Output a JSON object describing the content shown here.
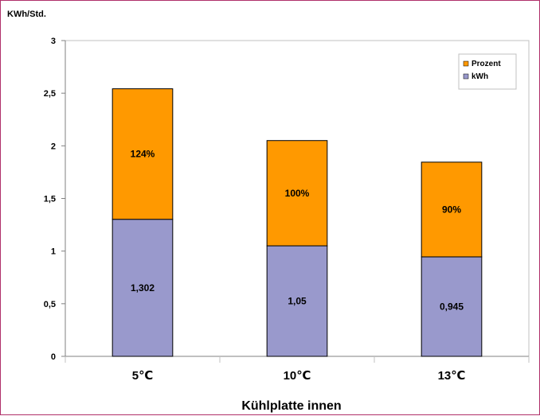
{
  "chart_data": {
    "type": "bar",
    "stacked": true,
    "categories": [
      "5℃",
      "10℃",
      "13℃"
    ],
    "series": [
      {
        "name": "kWh",
        "values": [
          1.302,
          1.05,
          0.945
        ],
        "labels": [
          "1,302",
          "1,05",
          "0,945"
        ],
        "color": "#9999cc"
      },
      {
        "name": "Prozent",
        "values": [
          1.24,
          1.0,
          0.9
        ],
        "labels": [
          "124%",
          "100%",
          "90%"
        ],
        "color": "#ff9900"
      }
    ],
    "ylabel": "KWh/Std.",
    "xlabel": "Kühlplatte innen",
    "ylim": [
      0,
      3
    ],
    "yticks": [
      0,
      0.5,
      1,
      1.5,
      2,
      2.5,
      3
    ],
    "ytick_labels": [
      "0",
      "0,5",
      "1",
      "1,5",
      "2",
      "2,5",
      "3"
    ],
    "legend": {
      "entries": [
        "Prozent",
        "kWh"
      ],
      "placement": "top-right"
    },
    "grid": false,
    "colors": {
      "frame_border": "#b0306a",
      "plot_border": "#c0c0c0",
      "bar_stroke": "#000000"
    }
  }
}
